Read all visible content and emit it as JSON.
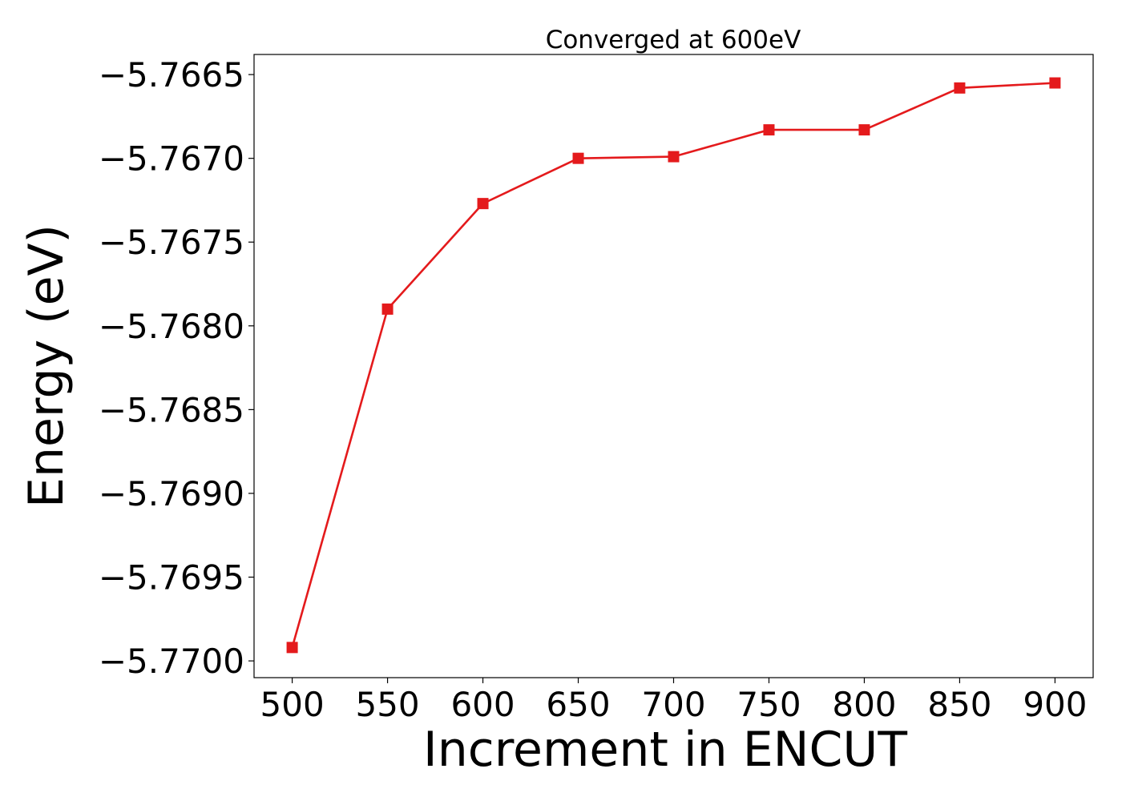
{
  "chart_data": {
    "type": "line",
    "title": "Converged at 600eV",
    "xlabel": "Increment in ENCUT",
    "ylabel": "Energy (eV)",
    "x": [
      500,
      550,
      600,
      650,
      700,
      750,
      800,
      850,
      900
    ],
    "series": [
      {
        "values": [
          -5.76992,
          -5.7679,
          -5.76727,
          -5.767,
          -5.76699,
          -5.76683,
          -5.76683,
          -5.76658,
          -5.76655
        ],
        "color": "#e41a1c",
        "marker": "square"
      }
    ],
    "xlim": [
      480,
      920
    ],
    "ylim": [
      -5.7701,
      -5.76638
    ],
    "x_ticks": [
      500,
      550,
      600,
      650,
      700,
      750,
      800,
      850,
      900
    ],
    "x_tick_labels": [
      "500",
      "550",
      "600",
      "650",
      "700",
      "750",
      "800",
      "850",
      "900"
    ],
    "y_ticks": [
      -5.77,
      -5.7695,
      -5.769,
      -5.7685,
      -5.768,
      -5.7675,
      -5.767,
      -5.7665
    ],
    "y_tick_labels": [
      "−5.7700",
      "−5.7695",
      "−5.7690",
      "−5.7685",
      "−5.7680",
      "−5.7675",
      "−5.7670",
      "−5.7665"
    ],
    "grid": false,
    "legend": "none"
  }
}
